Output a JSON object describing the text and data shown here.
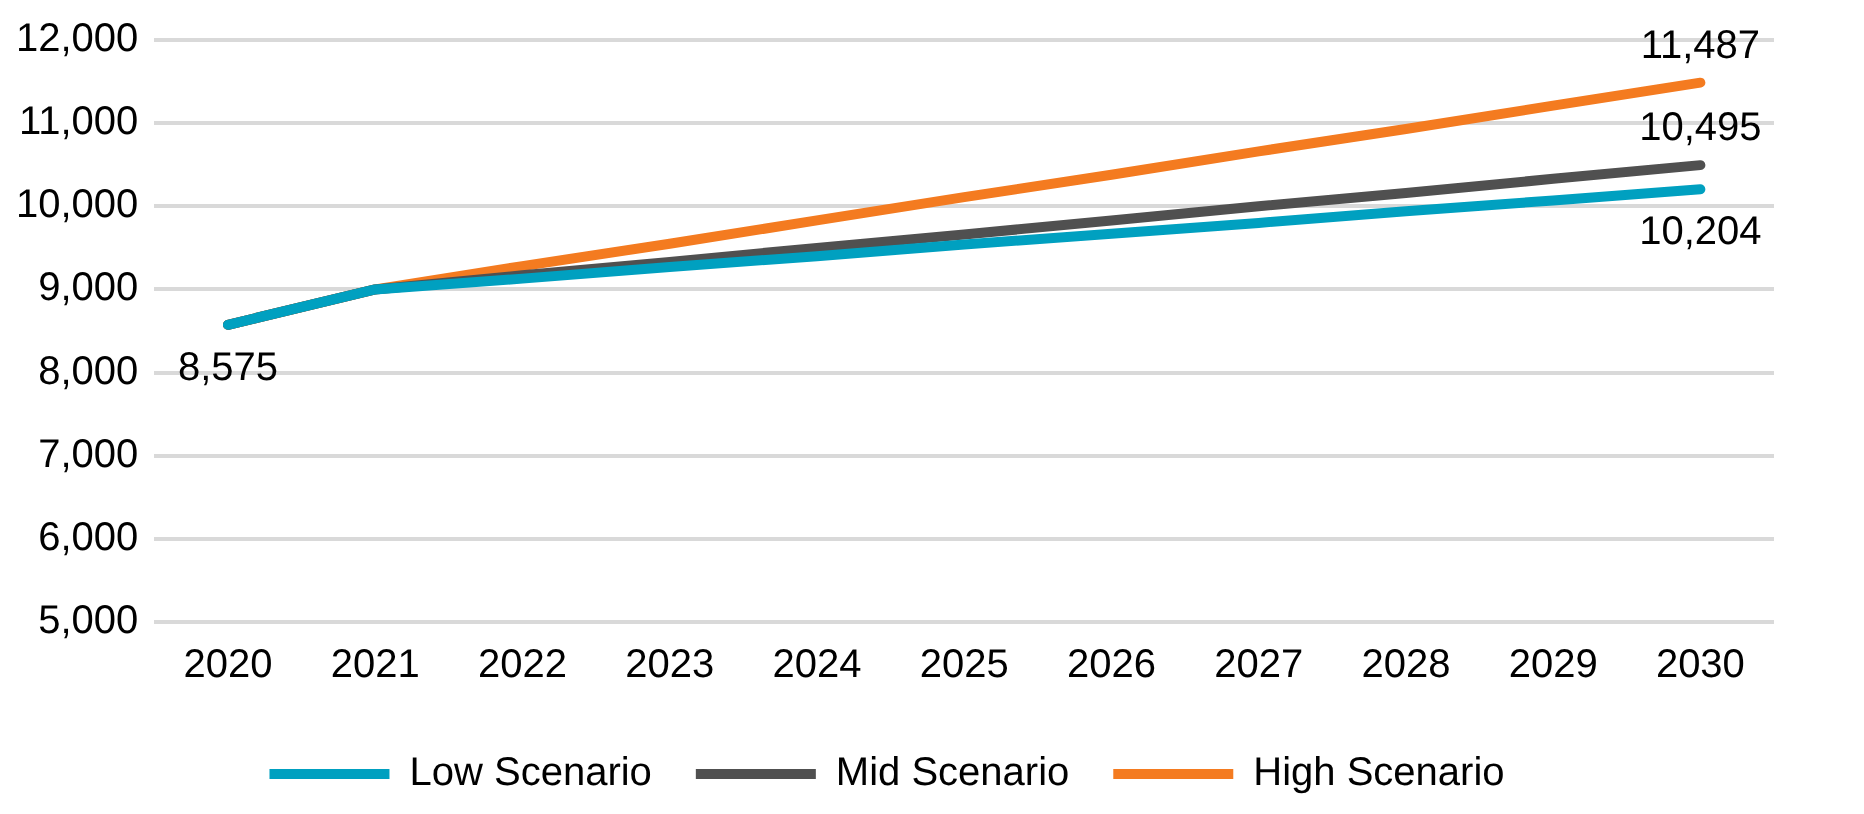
{
  "chart_data": {
    "type": "line",
    "categories": [
      "2020",
      "2021",
      "2022",
      "2023",
      "2024",
      "2025",
      "2026",
      "2027",
      "2028",
      "2029",
      "2030"
    ],
    "series": [
      {
        "name": "Low Scenario",
        "color": "#00a0c0",
        "values": [
          8575,
          9000,
          9130,
          9270,
          9400,
          9540,
          9670,
          9800,
          9940,
          10070,
          10204
        ],
        "value_labels": [
          "8,575",
          null,
          null,
          null,
          null,
          null,
          null,
          null,
          null,
          null,
          "10,204"
        ]
      },
      {
        "name": "Mid Scenario",
        "color": "#505050",
        "values": [
          8575,
          9000,
          9170,
          9330,
          9500,
          9660,
          9830,
          10000,
          10160,
          10330,
          10495
        ],
        "value_labels": [
          null,
          null,
          null,
          null,
          null,
          null,
          null,
          null,
          null,
          null,
          "10,495"
        ]
      },
      {
        "name": "High Scenario",
        "color": "#f47b20",
        "values": [
          8575,
          9000,
          9280,
          9550,
          9830,
          10110,
          10380,
          10660,
          10930,
          11210,
          11487
        ],
        "value_labels": [
          null,
          null,
          null,
          null,
          null,
          null,
          null,
          null,
          null,
          null,
          "11,487"
        ]
      }
    ],
    "ylim": [
      5000,
      12000
    ],
    "yticks": [
      {
        "value": 5000,
        "label": "5,000"
      },
      {
        "value": 6000,
        "label": "6,000"
      },
      {
        "value": 7000,
        "label": "7,000"
      },
      {
        "value": 8000,
        "label": "8,000"
      },
      {
        "value": 9000,
        "label": "9,000"
      },
      {
        "value": 10000,
        "label": "10,000"
      },
      {
        "value": 11000,
        "label": "11,000"
      },
      {
        "value": 12000,
        "label": "12,000"
      }
    ],
    "grid": "y",
    "legend": "bottom",
    "marker": "none",
    "line_style": "solid"
  }
}
